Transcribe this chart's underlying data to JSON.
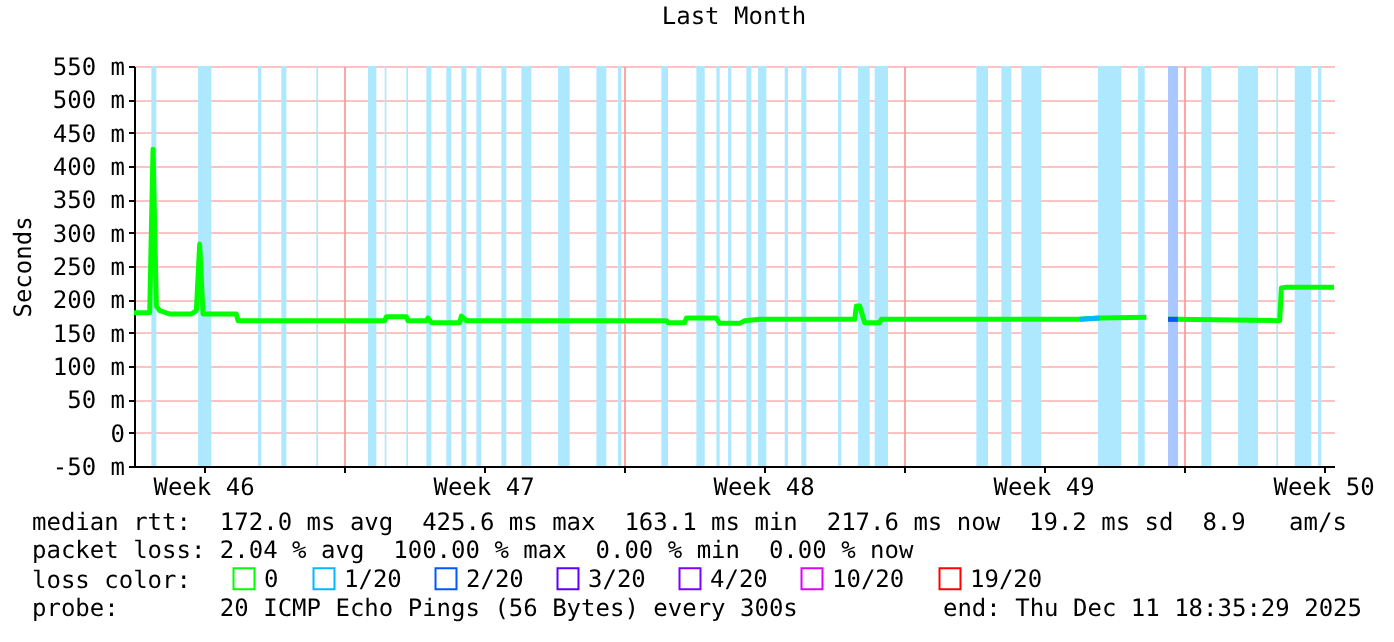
{
  "chart_data": {
    "type": "line",
    "title": "Last Month",
    "ylabel": "Seconds",
    "legend_title": "loss color:",
    "legend": "bottom",
    "grid": true,
    "xlim": [
      "2025-11-11T18:35",
      "2025-12-11T18:35"
    ],
    "xticks": [
      {
        "value": "2025-11-13T12:00",
        "label": "Week 46"
      },
      {
        "value": "2025-11-17T00:00",
        "label": null
      },
      {
        "value": "2025-11-20T12:00",
        "label": "Week 47"
      },
      {
        "value": "2025-11-24T00:00",
        "label": null
      },
      {
        "value": "2025-11-27T12:00",
        "label": "Week 48"
      },
      {
        "value": "2025-12-01T00:00",
        "label": null
      },
      {
        "value": "2025-12-04T12:00",
        "label": "Week 49"
      },
      {
        "value": "2025-12-08T00:00",
        "label": null
      },
      {
        "value": "2025-12-11T12:00",
        "label": "Week 50"
      }
    ],
    "ylim": [
      -50,
      550
    ],
    "yticks": [
      {
        "value": -50,
        "label": "-50 m"
      },
      {
        "value": 0,
        "label": "0"
      },
      {
        "value": 50,
        "label": "50 m"
      },
      {
        "value": 100,
        "label": "100 m"
      },
      {
        "value": 150,
        "label": "150 m"
      },
      {
        "value": 200,
        "label": "200 m"
      },
      {
        "value": 250,
        "label": "250 m"
      },
      {
        "value": 300,
        "label": "300 m"
      },
      {
        "value": 350,
        "label": "350 m"
      },
      {
        "value": 400,
        "label": "400 m"
      },
      {
        "value": 450,
        "label": "450 m"
      },
      {
        "value": 500,
        "label": "500 m"
      },
      {
        "value": 550,
        "label": "550 m"
      }
    ],
    "x": [
      "2025-11-11T18:35",
      "2025-11-12T04:00",
      "2025-11-12T06:00",
      "2025-11-12T08:00",
      "2025-11-12T10:00",
      "2025-11-12T16:00",
      "2025-11-13T05:00",
      "2025-11-13T08:00",
      "2025-11-13T10:00",
      "2025-11-13T12:00",
      "2025-11-14T08:00",
      "2025-11-14T09:00",
      "2025-11-18T01:00",
      "2025-11-18T02:00",
      "2025-11-18T14:00",
      "2025-11-18T15:00",
      "2025-11-19T02:00",
      "2025-11-19T03:00",
      "2025-11-19T05:00",
      "2025-11-19T22:00",
      "2025-11-19T23:00",
      "2025-11-20T02:00",
      "2025-11-25T02:00",
      "2025-11-25T03:00",
      "2025-11-25T13:00",
      "2025-11-25T14:00",
      "2025-11-26T08:00",
      "2025-11-26T10:00",
      "2025-11-26T22:00",
      "2025-11-27T01:00",
      "2025-11-27T10:00",
      "2025-11-29T19:00",
      "2025-11-29T20:00",
      "2025-11-29T22:00",
      "2025-11-30T01:00",
      "2025-11-30T10:00",
      "2025-11-30T11:00",
      "2025-12-05T10:00",
      "2025-12-05T22:00",
      "2025-12-07T02:00",
      "2025-12-07T08:00",
      "2025-12-07T15:00",
      "2025-12-07T21:00",
      "2025-12-10T10:00",
      "2025-12-10T11:00",
      "2025-12-10T14:00",
      "2025-12-11T18:35"
    ],
    "series": [
      {
        "name": "0",
        "color": "#00ff00",
        "values": [
          180,
          180,
          425,
          190,
          183,
          178,
          178,
          183,
          283,
          178,
          178,
          168,
          168,
          174,
          174,
          168,
          168,
          172,
          165,
          165,
          175,
          168,
          168,
          165,
          165,
          172,
          172,
          164,
          164,
          168,
          170,
          170,
          190,
          190,
          165,
          165,
          170,
          170,
          172,
          173,
          null,
          170,
          170,
          168,
          217,
          218,
          218
        ]
      },
      {
        "name": "1/20",
        "color": "#00b8ff",
        "values": [
          null,
          null,
          null,
          null,
          null,
          null,
          null,
          null,
          null,
          null,
          null,
          null,
          null,
          null,
          null,
          null,
          null,
          null,
          null,
          null,
          null,
          null,
          null,
          null,
          null,
          null,
          null,
          null,
          null,
          null,
          null,
          null,
          null,
          null,
          null,
          null,
          null,
          170,
          172,
          null,
          null,
          null,
          null,
          null,
          null,
          null,
          null
        ]
      },
      {
        "name": "2/20",
        "color": "#0059ff",
        "values": [
          null,
          null,
          null,
          null,
          null,
          null,
          null,
          null,
          null,
          null,
          null,
          null,
          null,
          null,
          null,
          null,
          null,
          null,
          null,
          null,
          null,
          null,
          null,
          null,
          null,
          null,
          null,
          null,
          null,
          null,
          null,
          null,
          null,
          null,
          null,
          null,
          null,
          null,
          null,
          null,
          null,
          170,
          170,
          null,
          null,
          null,
          null
        ]
      },
      {
        "name": "3/20",
        "color": "#5e00ff",
        "values": [
          null,
          null,
          null,
          null,
          null,
          null,
          null,
          null,
          null,
          null,
          null,
          null,
          null,
          null,
          null,
          null,
          null,
          null,
          null,
          null,
          null,
          null,
          null,
          null,
          null,
          null,
          null,
          null,
          null,
          null,
          null,
          null,
          null,
          null,
          null,
          null,
          null,
          null,
          null,
          null,
          null,
          null,
          null,
          null,
          null,
          null,
          null
        ]
      },
      {
        "name": "4/20",
        "color": "#7e00ff",
        "values": [
          null,
          null,
          null,
          null,
          null,
          null,
          null,
          null,
          null,
          null,
          null,
          null,
          null,
          null,
          null,
          null,
          null,
          null,
          null,
          null,
          null,
          null,
          null,
          null,
          null,
          null,
          null,
          null,
          null,
          null,
          null,
          null,
          null,
          null,
          null,
          null,
          null,
          null,
          null,
          null,
          null,
          null,
          null,
          null,
          null,
          null,
          null
        ]
      },
      {
        "name": "10/20",
        "color": "#dd00ff",
        "values": [
          null,
          null,
          null,
          null,
          null,
          null,
          null,
          null,
          null,
          null,
          null,
          null,
          null,
          null,
          null,
          null,
          null,
          null,
          null,
          null,
          null,
          null,
          null,
          null,
          null,
          null,
          null,
          null,
          null,
          null,
          null,
          null,
          null,
          null,
          null,
          null,
          null,
          null,
          null,
          null,
          null,
          null,
          null,
          null,
          null,
          null,
          null
        ]
      },
      {
        "name": "19/20",
        "color": "#ff0000",
        "values": [
          null,
          null,
          null,
          null,
          null,
          null,
          null,
          null,
          null,
          null,
          null,
          null,
          null,
          null,
          null,
          null,
          null,
          null,
          null,
          null,
          null,
          null,
          null,
          null,
          null,
          null,
          null,
          null,
          null,
          null,
          null,
          null,
          null,
          null,
          null,
          null,
          null,
          null,
          null,
          null,
          null,
          null,
          null,
          null,
          null,
          null,
          null
        ]
      }
    ],
    "bands": [
      {
        "axis": "x",
        "from": "2025-11-12T05:00",
        "to": "2025-11-12T08:00",
        "color": "#aee8ff"
      },
      {
        "axis": "x",
        "from": "2025-11-13T09:00",
        "to": "2025-11-13T17:00",
        "color": "#aee8ff"
      },
      {
        "axis": "x",
        "from": "2025-11-14T21:00",
        "to": "2025-11-14T23:00",
        "color": "#aee8ff"
      },
      {
        "axis": "x",
        "from": "2025-11-15T11:00",
        "to": "2025-11-15T14:00",
        "color": "#aee8ff"
      },
      {
        "axis": "x",
        "from": "2025-11-16T08:00",
        "to": "2025-11-16T09:00",
        "color": "#aee8ff"
      },
      {
        "axis": "x",
        "from": "2025-11-17T15:00",
        "to": "2025-11-17T20:00",
        "color": "#aee8ff"
      },
      {
        "axis": "x",
        "from": "2025-11-18T01:00",
        "to": "2025-11-18T02:00",
        "color": "#aee8ff"
      },
      {
        "axis": "x",
        "from": "2025-11-18T14:00",
        "to": "2025-11-18T15:00",
        "color": "#aee8ff"
      },
      {
        "axis": "x",
        "from": "2025-11-19T02:00",
        "to": "2025-11-19T05:00",
        "color": "#aee8ff"
      },
      {
        "axis": "x",
        "from": "2025-11-19T14:00",
        "to": "2025-11-19T17:00",
        "color": "#aee8ff"
      },
      {
        "axis": "x",
        "from": "2025-11-19T23:00",
        "to": "2025-11-20T02:00",
        "color": "#aee8ff"
      },
      {
        "axis": "x",
        "from": "2025-11-20T08:00",
        "to": "2025-11-20T11:00",
        "color": "#aee8ff"
      },
      {
        "axis": "x",
        "from": "2025-11-20T23:00",
        "to": "2025-11-21T02:00",
        "color": "#aee8ff"
      },
      {
        "axis": "x",
        "from": "2025-11-21T11:00",
        "to": "2025-11-21T17:00",
        "color": "#aee8ff"
      },
      {
        "axis": "x",
        "from": "2025-11-22T09:00",
        "to": "2025-11-22T16:00",
        "color": "#aee8ff"
      },
      {
        "axis": "x",
        "from": "2025-11-23T08:00",
        "to": "2025-11-23T14:00",
        "color": "#aee8ff"
      },
      {
        "axis": "x",
        "from": "2025-11-23T21:00",
        "to": "2025-11-23T23:00",
        "color": "#aee8ff"
      },
      {
        "axis": "x",
        "from": "2025-11-24T23:00",
        "to": "2025-11-25T03:00",
        "color": "#aee8ff"
      },
      {
        "axis": "x",
        "from": "2025-11-25T20:00",
        "to": "2025-11-26T01:00",
        "color": "#aee8ff"
      },
      {
        "axis": "x",
        "from": "2025-11-26T08:00",
        "to": "2025-11-26T10:00",
        "color": "#aee8ff"
      },
      {
        "axis": "x",
        "from": "2025-11-26T15:00",
        "to": "2025-11-26T17:00",
        "color": "#aee8ff"
      },
      {
        "axis": "x",
        "from": "2025-11-27T02:00",
        "to": "2025-11-27T05:00",
        "color": "#aee8ff"
      },
      {
        "axis": "x",
        "from": "2025-11-27T09:00",
        "to": "2025-11-27T14:00",
        "color": "#aee8ff"
      },
      {
        "axis": "x",
        "from": "2025-11-28T01:00",
        "to": "2025-11-28T03:00",
        "color": "#aee8ff"
      },
      {
        "axis": "x",
        "from": "2025-11-28T11:00",
        "to": "2025-11-28T14:00",
        "color": "#aee8ff"
      },
      {
        "axis": "x",
        "from": "2025-11-29T09:00",
        "to": "2025-11-29T11:00",
        "color": "#aee8ff"
      },
      {
        "axis": "x",
        "from": "2025-11-29T21:00",
        "to": "2025-11-30T04:00",
        "color": "#aee8ff"
      },
      {
        "axis": "x",
        "from": "2025-11-30T07:00",
        "to": "2025-11-30T15:00",
        "color": "#aee8ff"
      },
      {
        "axis": "x",
        "from": "2025-12-02T20:00",
        "to": "2025-12-03T03:00",
        "color": "#aee8ff"
      },
      {
        "axis": "x",
        "from": "2025-12-03T11:00",
        "to": "2025-12-03T17:00",
        "color": "#aee8ff"
      },
      {
        "axis": "x",
        "from": "2025-12-03T23:00",
        "to": "2025-12-04T11:00",
        "color": "#aee8ff"
      },
      {
        "axis": "x",
        "from": "2025-12-05T21:00",
        "to": "2025-12-06T11:00",
        "color": "#aee8ff"
      },
      {
        "axis": "x",
        "from": "2025-12-06T21:00",
        "to": "2025-12-07T01:00",
        "color": "#aee8ff"
      },
      {
        "axis": "x",
        "from": "2025-12-07T15:00",
        "to": "2025-12-07T21:00",
        "color": "#a8c8ff"
      },
      {
        "axis": "x",
        "from": "2025-12-08T11:00",
        "to": "2025-12-08T17:00",
        "color": "#aee8ff"
      },
      {
        "axis": "x",
        "from": "2025-12-09T09:00",
        "to": "2025-12-09T21:00",
        "color": "#aee8ff"
      },
      {
        "axis": "x",
        "from": "2025-12-10T08:00",
        "to": "2025-12-10T09:00",
        "color": "#aee8ff"
      },
      {
        "axis": "x",
        "from": "2025-12-10T19:00",
        "to": "2025-12-11T05:00",
        "color": "#aee8ff"
      },
      {
        "axis": "x",
        "from": "2025-12-11T09:00",
        "to": "2025-12-11T11:00",
        "color": "#aee8ff"
      }
    ],
    "annotations": [
      "median rtt:  172.0 ms avg  425.6 ms max  163.1 ms min  217.6 ms now  19.2 ms sd  8.9   am/s",
      "packet loss: 2.04 % avg  100.00 % max  0.00 % min  0.00 % now",
      "probe:       20 ICMP Echo Pings (56 Bytes) every 300s",
      "end: Thu Dec 11 18:35:29 2025"
    ]
  }
}
